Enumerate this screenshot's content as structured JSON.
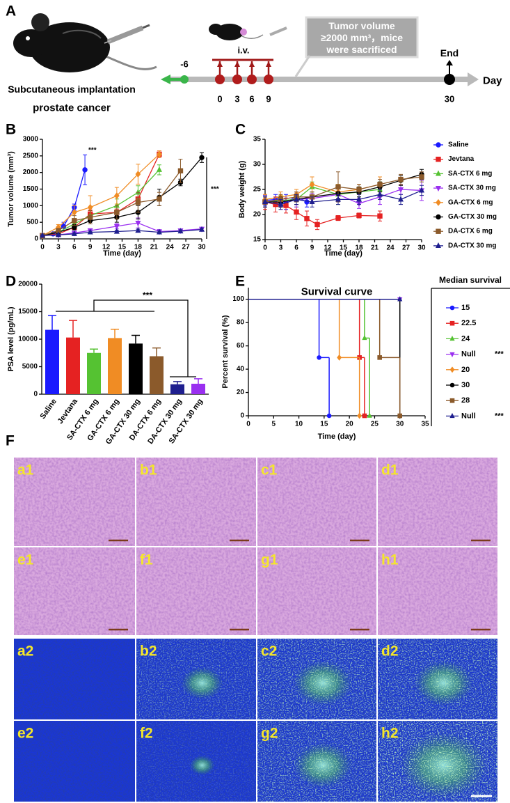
{
  "panel_a": {
    "panel": "A",
    "box_lines": [
      "Tumor volume",
      "≥2000 mm³，mice",
      "were sacrificed"
    ],
    "route": "i.v.",
    "days": [
      -6,
      0,
      3,
      6,
      9,
      30
    ],
    "end": "End",
    "axis_label": "Day",
    "caption": [
      "Subcutaneous implantation",
      "prostate cancer"
    ]
  },
  "chart_data": [
    {
      "type": "line",
      "panel": "B",
      "ylabel": "Tumor volume (mm³)",
      "xlabel": "Time (day)",
      "xlim": [
        0,
        30
      ],
      "xticks": [
        0,
        3,
        6,
        9,
        12,
        15,
        18,
        21,
        24,
        27,
        30
      ],
      "ylim": [
        0,
        3000
      ],
      "yticks": [
        0,
        500,
        1000,
        1500,
        2000,
        2500,
        3000
      ],
      "annotations": [
        "***",
        "***"
      ],
      "series": [
        {
          "color": "#1a1aff",
          "marker": "circle",
          "x": [
            0,
            2,
            4,
            6,
            8
          ],
          "values": [
            100,
            150,
            380,
            950,
            2080
          ],
          "errors": [
            20,
            30,
            120,
            100,
            450
          ]
        },
        {
          "color": "#e52222",
          "marker": "square",
          "x": [
            0,
            3,
            6,
            9,
            14,
            18,
            22
          ],
          "values": [
            100,
            150,
            350,
            750,
            800,
            1200,
            2550
          ],
          "errors": [
            20,
            30,
            60,
            120,
            100,
            150,
            100
          ]
        },
        {
          "color": "#55c232",
          "marker": "triangle",
          "x": [
            0,
            3,
            6,
            9,
            14,
            18,
            22
          ],
          "values": [
            100,
            200,
            450,
            700,
            1000,
            1400,
            2080
          ],
          "errors": [
            20,
            40,
            100,
            150,
            200,
            200,
            150
          ]
        },
        {
          "color": "#9a2ff0",
          "marker": "triangle-down",
          "x": [
            0,
            3,
            6,
            9,
            14,
            18,
            22,
            26,
            30
          ],
          "values": [
            100,
            120,
            180,
            250,
            380,
            480,
            220,
            250,
            300
          ],
          "errors": [
            20,
            20,
            40,
            60,
            80,
            150,
            60,
            50,
            40
          ]
        },
        {
          "color": "#f08c24",
          "marker": "diamond",
          "x": [
            0,
            3,
            6,
            9,
            14,
            18,
            22
          ],
          "values": [
            100,
            350,
            800,
            950,
            1300,
            1950,
            2550
          ],
          "errors": [
            20,
            80,
            200,
            350,
            250,
            300,
            100
          ]
        },
        {
          "color": "#000000",
          "marker": "circle",
          "x": [
            0,
            3,
            6,
            9,
            14,
            18,
            22,
            26,
            30
          ],
          "values": [
            100,
            200,
            350,
            550,
            650,
            800,
            1250,
            1700,
            2450
          ],
          "errors": [
            20,
            40,
            80,
            100,
            150,
            200,
            250,
            100,
            150
          ]
        },
        {
          "color": "#8b5a2b",
          "marker": "square",
          "x": [
            0,
            3,
            6,
            9,
            14,
            18,
            22,
            26
          ],
          "values": [
            100,
            250,
            550,
            650,
            800,
            1100,
            1200,
            2050
          ],
          "errors": [
            20,
            60,
            150,
            200,
            200,
            300,
            200,
            350
          ]
        },
        {
          "color": "#1f1f8f",
          "marker": "triangle",
          "x": [
            0,
            3,
            6,
            9,
            14,
            18,
            22,
            26,
            30
          ],
          "values": [
            100,
            120,
            150,
            200,
            220,
            250,
            200,
            230,
            280
          ],
          "errors": [
            20,
            20,
            30,
            30,
            40,
            40,
            40,
            40,
            40
          ]
        }
      ]
    },
    {
      "type": "line",
      "panel": "C",
      "ylabel": "Body weight (g)",
      "xlabel": "Time (day)",
      "xlim": [
        0,
        30
      ],
      "xticks": [
        0,
        3,
        6,
        9,
        12,
        15,
        18,
        21,
        24,
        27,
        30
      ],
      "ylim": [
        15,
        35
      ],
      "yticks": [
        15,
        20,
        25,
        30,
        35
      ],
      "legend": "right",
      "series": [
        {
          "name": "Saline",
          "color": "#1a1aff",
          "marker": "circle",
          "x": [
            0,
            2,
            4,
            6,
            8
          ],
          "values": [
            22.8,
            23,
            22.5,
            23.5,
            22.5
          ],
          "errors": [
            1,
            1,
            1.5,
            1,
            1
          ]
        },
        {
          "name": "Jevtana",
          "color": "#e52222",
          "marker": "square",
          "x": [
            0,
            2,
            4,
            6,
            8,
            10,
            14,
            18,
            22
          ],
          "values": [
            22.5,
            22,
            21.8,
            20.5,
            19.2,
            18,
            19.3,
            19.8,
            19.7
          ],
          "errors": [
            1.5,
            1.5,
            1.5,
            1.5,
            1.5,
            1,
            0.5,
            0.5,
            1
          ]
        },
        {
          "name": "SA-CTX 6 mg",
          "color": "#55c232",
          "marker": "triangle",
          "x": [
            0,
            3,
            6,
            9,
            14,
            18,
            22
          ],
          "values": [
            22.5,
            22.8,
            23,
            25.5,
            24,
            24.5,
            25
          ],
          "errors": [
            1,
            1,
            1.5,
            1,
            2,
            1,
            1.5
          ]
        },
        {
          "name": "SA-CTX 30 mg",
          "color": "#9a2ff0",
          "marker": "triangle-down",
          "x": [
            0,
            3,
            6,
            9,
            14,
            18,
            22,
            26,
            30
          ],
          "values": [
            22.5,
            22.5,
            23,
            23.2,
            24,
            22.2,
            23.5,
            25,
            24.8
          ],
          "errors": [
            1,
            1,
            1.5,
            1,
            1.5,
            1,
            1.5,
            1,
            2
          ]
        },
        {
          "name": "GA-CTX 6 mg",
          "color": "#f08c24",
          "marker": "diamond",
          "x": [
            0,
            3,
            6,
            9,
            14,
            18,
            22
          ],
          "values": [
            23,
            23.5,
            24,
            26,
            24.5,
            25,
            26
          ],
          "errors": [
            1,
            1,
            1,
            1.5,
            1.5,
            1,
            1.5
          ]
        },
        {
          "name": "GA-CTX 30 mg",
          "color": "#000000",
          "marker": "circle",
          "x": [
            0,
            3,
            6,
            9,
            14,
            18,
            22,
            26,
            30
          ],
          "values": [
            22.5,
            22.5,
            23,
            23.5,
            24.2,
            24.5,
            25.5,
            26.8,
            28
          ],
          "errors": [
            1,
            1,
            1,
            1,
            1,
            1,
            1,
            1,
            1
          ]
        },
        {
          "name": "DA-CTX 6 mg",
          "color": "#8b5a2b",
          "marker": "square",
          "x": [
            0,
            3,
            6,
            9,
            14,
            18,
            22,
            26,
            30
          ],
          "values": [
            22.5,
            23,
            23.5,
            23.5,
            25.5,
            25,
            26,
            27,
            27.5
          ],
          "errors": [
            1,
            1,
            1,
            1,
            3,
            1,
            1,
            1,
            1
          ]
        },
        {
          "name": "DA-CTX 30 mg",
          "color": "#1f1f8f",
          "marker": "triangle",
          "x": [
            0,
            3,
            6,
            9,
            14,
            18,
            22,
            26,
            30
          ],
          "values": [
            22.5,
            22,
            23,
            22.5,
            23,
            23,
            24,
            23,
            24.8
          ],
          "errors": [
            1,
            1,
            1,
            1,
            1,
            1,
            1,
            1,
            1
          ]
        }
      ]
    },
    {
      "type": "bar",
      "panel": "D",
      "ylabel": "PSA level (pg/mL)",
      "categories": [
        "Saline",
        "Jevtana",
        "SA-CTX 6 mg",
        "GA-CTX 6 mg",
        "GA-CTX 30 mg",
        "DA-CTX 6 mg",
        "DA-CTX 30 mg",
        "SA-CTX 30 mg"
      ],
      "values": [
        11700,
        10300,
        7500,
        10200,
        9200,
        6900,
        1800,
        1900
      ],
      "errors": [
        2600,
        3100,
        700,
        1600,
        1500,
        1500,
        500,
        900
      ],
      "colors": [
        "#1a1aff",
        "#e52222",
        "#55c232",
        "#f08c24",
        "#000000",
        "#8b5a2b",
        "#1f1f8f",
        "#9a2ff0"
      ],
      "ylim": [
        0,
        20000
      ],
      "yticks": [
        0,
        5000,
        10000,
        15000,
        20000
      ],
      "annotations": [
        "***"
      ]
    },
    {
      "type": "survival",
      "panel": "E",
      "title": "Survival curve",
      "ylabel": "Percent survival (%)",
      "xlabel": "Time (day)",
      "xlim": [
        0,
        35
      ],
      "xticks": [
        0,
        5,
        10,
        15,
        20,
        25,
        30,
        35
      ],
      "ylim": [
        0,
        110
      ],
      "yticks": [
        0,
        20,
        40,
        60,
        80,
        100
      ],
      "legend_title": "Median survival",
      "series": [
        {
          "color": "#1a1aff",
          "marker": "circle",
          "x": [
            0,
            14,
            16
          ],
          "values": [
            100,
            50,
            0
          ],
          "median": 15,
          "significance": null
        },
        {
          "color": "#e52222",
          "marker": "square",
          "x": [
            0,
            22,
            23
          ],
          "values": [
            100,
            50,
            0
          ],
          "median": 22.5,
          "significance": null
        },
        {
          "color": "#55c232",
          "marker": "triangle",
          "x": [
            0,
            23,
            24
          ],
          "values": [
            100,
            66.7,
            0
          ],
          "median": 24,
          "significance": null
        },
        {
          "color": "#9a2ff0",
          "marker": "triangle-down",
          "x": [
            0,
            30
          ],
          "values": [
            100,
            100
          ],
          "median": "Null",
          "significance": "***"
        },
        {
          "color": "#f08c24",
          "marker": "diamond",
          "x": [
            0,
            18,
            22
          ],
          "values": [
            100,
            50,
            0
          ],
          "median": 20,
          "significance": null
        },
        {
          "color": "#000000",
          "marker": "circle",
          "x": [
            0,
            30
          ],
          "values": [
            100,
            0
          ],
          "median": 30,
          "significance": null
        },
        {
          "color": "#8b5a2b",
          "marker": "square",
          "x": [
            0,
            26,
            30
          ],
          "values": [
            100,
            50,
            0
          ],
          "median": 28,
          "significance": null
        },
        {
          "color": "#1f1f8f",
          "marker": "triangle",
          "x": [
            0,
            30
          ],
          "values": [
            100,
            100
          ],
          "median": "Null",
          "significance": "***"
        }
      ]
    }
  ],
  "panel_f": {
    "panel": "F",
    "labels": [
      "a1",
      "b1",
      "c1",
      "d1",
      "e1",
      "f1",
      "g1",
      "h1",
      "a2",
      "b2",
      "c2",
      "d2",
      "e2",
      "f2",
      "g2",
      "h2"
    ]
  }
}
